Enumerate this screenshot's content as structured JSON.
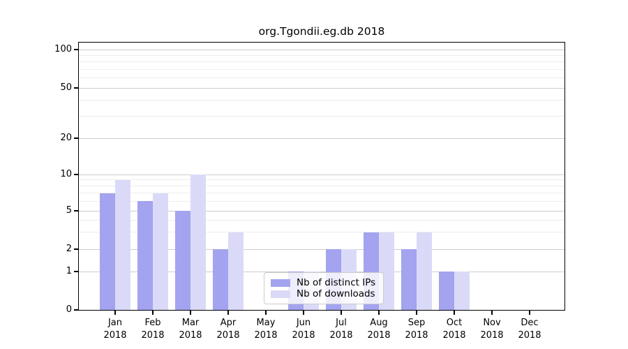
{
  "chart_data": {
    "type": "bar",
    "title": "org.Tgondii.eg.db 2018",
    "categories": [
      "Jan",
      "Feb",
      "Mar",
      "Apr",
      "May",
      "Jun",
      "Jul",
      "Aug",
      "Sep",
      "Oct",
      "Nov",
      "Dec"
    ],
    "x_year_label": "2018",
    "series": [
      {
        "name": "Nb of distinct IPs",
        "color": "#a3a3f0",
        "values": [
          7,
          6,
          5,
          2,
          0,
          1,
          2,
          3,
          2,
          1,
          0,
          0
        ]
      },
      {
        "name": "Nb of downloads",
        "color": "#dadaf8",
        "values": [
          9,
          7,
          10,
          3,
          0,
          1,
          2,
          3,
          3,
          1,
          0,
          0
        ]
      }
    ],
    "y_axis": {
      "ticks": [
        0,
        1,
        2,
        5,
        10,
        20,
        50,
        100
      ],
      "minor_gridlines": [
        3,
        4,
        6,
        7,
        8,
        9,
        30,
        40,
        60,
        70,
        80,
        90
      ],
      "scale": "log-like",
      "ylim": [
        0,
        100
      ]
    },
    "legend": {
      "position": "lower center",
      "entries": [
        "Nb of distinct IPs",
        "Nb of downloads"
      ]
    },
    "grid": true
  },
  "colors": {
    "major_grid": "#cccccc",
    "minor_grid": "#ededed",
    "axis": "#000000",
    "background": "#ffffff",
    "text": "#000000"
  }
}
